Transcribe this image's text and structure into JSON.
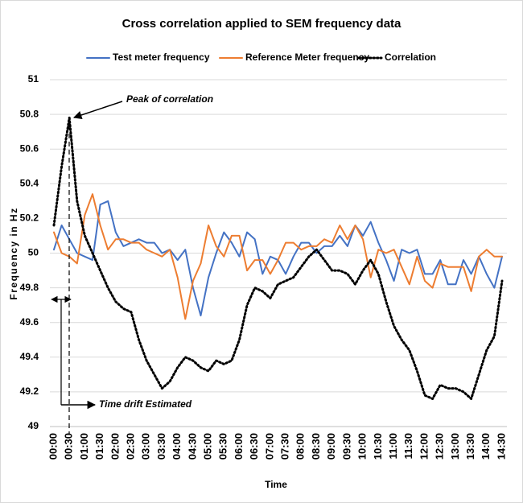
{
  "chart_data": {
    "type": "line",
    "title": "Cross correlation applied to SEM frequency data",
    "xlabel": "Time",
    "ylabel": "Frequency in Hz",
    "categories": [
      "00:00",
      null,
      "00:30",
      null,
      "01:00",
      null,
      "01:30",
      null,
      "02:00",
      null,
      "02:30",
      null,
      "03:00",
      null,
      "03:30",
      null,
      "04:00",
      null,
      "04:30",
      null,
      "05:00",
      null,
      "05:30",
      null,
      "06:00",
      null,
      "06:30",
      null,
      "07:00",
      null,
      "07:30",
      null,
      "08:00",
      null,
      "08:30",
      null,
      "09:00",
      null,
      "09:30",
      null,
      "10:00",
      null,
      "10:30",
      null,
      "11:00",
      null,
      "11:30",
      null,
      "12:00",
      null,
      "12:30",
      null,
      "13:00",
      null,
      "13:30",
      null,
      "14:00",
      null,
      "14:30"
    ],
    "series": [
      {
        "name": "Test meter frequency",
        "color": "#4472c4",
        "style": "solid",
        "values": [
          50.02,
          50.16,
          50.08,
          50.0,
          49.98,
          49.96,
          50.28,
          50.3,
          50.12,
          50.04,
          50.06,
          50.08,
          50.06,
          50.06,
          50.0,
          50.02,
          49.96,
          50.02,
          49.8,
          49.64,
          49.86,
          50.0,
          50.12,
          50.06,
          49.98,
          50.12,
          50.08,
          49.88,
          49.98,
          49.96,
          49.88,
          49.98,
          50.06,
          50.06,
          50.0,
          50.04,
          50.04,
          50.1,
          50.04,
          50.16,
          50.1,
          50.18,
          50.06,
          49.96,
          49.84,
          50.02,
          50.0,
          50.02,
          49.88,
          49.88,
          49.96,
          49.82,
          49.82,
          49.96,
          49.88,
          49.98,
          49.88,
          49.8,
          49.98
        ]
      },
      {
        "name": "Reference Meter frequency",
        "color": "#ed7d31",
        "style": "solid",
        "values": [
          50.12,
          50.0,
          49.98,
          49.94,
          50.22,
          50.34,
          50.16,
          50.02,
          50.08,
          50.08,
          50.06,
          50.06,
          50.02,
          50.0,
          49.98,
          50.02,
          49.86,
          49.62,
          49.84,
          49.94,
          50.16,
          50.04,
          49.98,
          50.1,
          50.1,
          49.9,
          49.96,
          49.96,
          49.88,
          49.96,
          50.06,
          50.06,
          50.02,
          50.04,
          50.04,
          50.08,
          50.06,
          50.16,
          50.08,
          50.16,
          50.08,
          49.86,
          50.02,
          50.0,
          50.02,
          49.92,
          49.82,
          49.98,
          49.84,
          49.8,
          49.94,
          49.92,
          49.92,
          49.92,
          49.78,
          49.98,
          50.02,
          49.98,
          49.98
        ]
      },
      {
        "name": "Correlation",
        "color": "#000000",
        "style": "dotted",
        "values": [
          50.16,
          50.5,
          50.78,
          50.3,
          50.1,
          50.0,
          49.9,
          49.8,
          49.72,
          49.68,
          49.66,
          49.5,
          49.38,
          49.3,
          49.22,
          49.26,
          49.34,
          49.4,
          49.38,
          49.34,
          49.32,
          49.38,
          49.36,
          49.38,
          49.5,
          49.7,
          49.8,
          49.78,
          49.74,
          49.82,
          49.84,
          49.86,
          49.92,
          49.98,
          50.02,
          49.96,
          49.9,
          49.9,
          49.88,
          49.82,
          49.9,
          49.96,
          49.88,
          49.72,
          49.58,
          49.5,
          49.44,
          49.32,
          49.18,
          49.16,
          49.24,
          49.22,
          49.22,
          49.2,
          49.16,
          49.3,
          49.44,
          49.52,
          49.84
        ]
      }
    ],
    "ylim": [
      49,
      51
    ],
    "yticks": [
      49,
      {
        "value": 49.2,
        "label": "49.2"
      },
      {
        "value": 49.4,
        "label": "49.4"
      },
      {
        "value": 49.6,
        "label": "49.6"
      },
      {
        "value": 49.8,
        "label": "49.8"
      },
      50,
      {
        "value": 50.2,
        "label": "50.2"
      },
      {
        "value": 50.4,
        "label": "50.4"
      },
      {
        "value": 50.6,
        "label": "50.6"
      },
      {
        "value": 50.8,
        "label": "50.8"
      },
      51
    ],
    "grid": true,
    "legend": "top",
    "annotations": [
      "Peak of correlation",
      "Time drift Estimated"
    ]
  }
}
